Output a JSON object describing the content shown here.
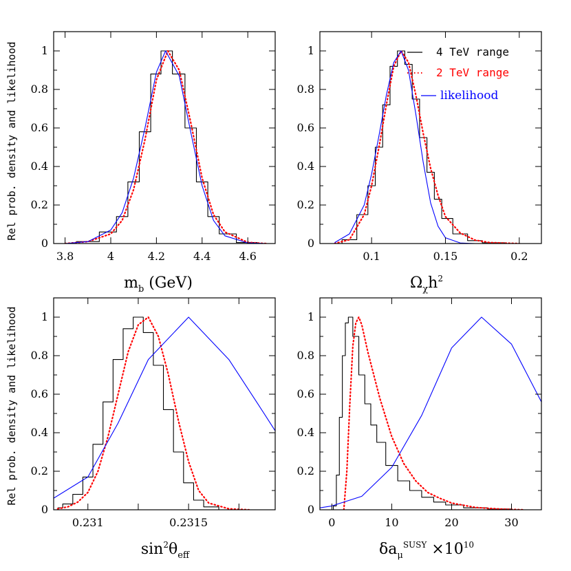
{
  "figure": {
    "ylabel": "Rel prob. density and likelihood"
  },
  "legend": {
    "items": [
      {
        "label": "4 TeV range",
        "color": "#000000",
        "style": "solid"
      },
      {
        "label": "2 TeV range",
        "color": "#ff0000",
        "style": "dotted"
      },
      {
        "label": "likelihood",
        "color": "#0000ff",
        "style": "solid"
      }
    ]
  },
  "chart_data": [
    {
      "type": "line",
      "xlabel_parts": [
        {
          "t": "m",
          "s": ""
        },
        {
          "t": "b",
          "s": "sub"
        },
        {
          "t": " (GeV)",
          "s": ""
        }
      ],
      "xlim": [
        3.75,
        4.72
      ],
      "ylim": [
        0,
        1.1
      ],
      "xticks": [
        3.8,
        4,
        4.2,
        4.4,
        4.6
      ],
      "xtick_labels": [
        "3.8",
        "4",
        "4.2",
        "4.4",
        "4.6"
      ],
      "yticks": [
        0,
        0.2,
        0.4,
        0.6,
        0.8,
        1
      ],
      "ytick_labels": [
        "0",
        "0.2",
        "0.4",
        "0.6",
        "0.8",
        "1"
      ],
      "series": [
        {
          "name": "4 TeV range",
          "color": "#000000",
          "style": "step",
          "x": [
            3.8,
            3.9,
            4.0,
            4.05,
            4.1,
            4.15,
            4.2,
            4.24,
            4.3,
            4.35,
            4.4,
            4.45,
            4.5,
            4.6,
            4.68
          ],
          "y": [
            0,
            0.01,
            0.06,
            0.14,
            0.32,
            0.58,
            0.88,
            1.0,
            0.88,
            0.6,
            0.32,
            0.14,
            0.05,
            0.005,
            0
          ]
        },
        {
          "name": "2 TeV range",
          "color": "#ff0000",
          "style": "dotted",
          "x": [
            3.8,
            3.9,
            4.0,
            4.05,
            4.1,
            4.15,
            4.2,
            4.25,
            4.3,
            4.35,
            4.4,
            4.45,
            4.5,
            4.6,
            4.68
          ],
          "y": [
            0,
            0.01,
            0.05,
            0.12,
            0.28,
            0.54,
            0.85,
            1.0,
            0.9,
            0.63,
            0.34,
            0.15,
            0.06,
            0.006,
            0
          ]
        },
        {
          "name": "likelihood",
          "color": "#0000ff",
          "style": "line",
          "x": [
            3.8,
            3.9,
            4.0,
            4.05,
            4.1,
            4.15,
            4.2,
            4.24,
            4.3,
            4.35,
            4.4,
            4.45,
            4.5,
            4.6,
            4.68
          ],
          "y": [
            0,
            0.01,
            0.07,
            0.16,
            0.34,
            0.6,
            0.89,
            1.0,
            0.87,
            0.58,
            0.3,
            0.12,
            0.04,
            0.003,
            0
          ]
        }
      ]
    },
    {
      "type": "line",
      "xlabel_parts": [
        {
          "t": "Ω",
          "s": ""
        },
        {
          "t": "χ",
          "s": "sub"
        },
        {
          "t": "h",
          "s": ""
        },
        {
          "t": "2",
          "s": "sup"
        }
      ],
      "xlim": [
        0.065,
        0.215
      ],
      "ylim": [
        0,
        1.1
      ],
      "xticks": [
        0.1,
        0.15,
        0.2
      ],
      "xtick_labels": [
        "0.1",
        "0.15",
        "0.2"
      ],
      "yticks": [
        0,
        0.2,
        0.4,
        0.6,
        0.8,
        1
      ],
      "ytick_labels": [
        "0",
        "0.2",
        "0.4",
        "0.6",
        "0.8",
        "1"
      ],
      "series": [
        {
          "name": "4 TeV range",
          "color": "#000000",
          "style": "step",
          "x": [
            0.075,
            0.085,
            0.095,
            0.1,
            0.105,
            0.11,
            0.115,
            0.12,
            0.125,
            0.13,
            0.135,
            0.14,
            0.145,
            0.15,
            0.16,
            0.17,
            0.18,
            0.2
          ],
          "y": [
            0,
            0.02,
            0.15,
            0.3,
            0.5,
            0.72,
            0.92,
            1.0,
            0.93,
            0.75,
            0.55,
            0.37,
            0.23,
            0.13,
            0.05,
            0.015,
            0.004,
            0
          ]
        },
        {
          "name": "2 TeV range",
          "color": "#ff0000",
          "style": "dotted",
          "x": [
            0.075,
            0.085,
            0.095,
            0.1,
            0.105,
            0.11,
            0.115,
            0.12,
            0.125,
            0.13,
            0.135,
            0.14,
            0.145,
            0.15,
            0.16,
            0.17,
            0.18,
            0.2
          ],
          "y": [
            0,
            0.02,
            0.15,
            0.3,
            0.5,
            0.72,
            0.92,
            1.0,
            0.94,
            0.77,
            0.57,
            0.39,
            0.25,
            0.14,
            0.055,
            0.018,
            0.005,
            0
          ]
        },
        {
          "name": "likelihood",
          "color": "#0000ff",
          "style": "line",
          "x": [
            0.075,
            0.085,
            0.095,
            0.1,
            0.105,
            0.11,
            0.115,
            0.12,
            0.125,
            0.13,
            0.135,
            0.14,
            0.145,
            0.15,
            0.16,
            0.17
          ],
          "y": [
            0.005,
            0.05,
            0.2,
            0.36,
            0.56,
            0.77,
            0.94,
            1.0,
            0.9,
            0.67,
            0.42,
            0.21,
            0.09,
            0.03,
            0.003,
            0
          ]
        }
      ]
    },
    {
      "type": "line",
      "xlabel_parts": [
        {
          "t": "sin",
          "s": ""
        },
        {
          "t": "2",
          "s": "sup"
        },
        {
          "t": "θ",
          "s": ""
        },
        {
          "t": "eff",
          "s": "sub"
        }
      ],
      "xlim": [
        0.23083,
        0.23193
      ],
      "ylim": [
        0,
        1.1
      ],
      "xticks": [
        0.231,
        0.23125,
        0.2315,
        0.23175
      ],
      "xtick_labels": [
        "0.231",
        "",
        "0.2315",
        ""
      ],
      "yticks": [
        0,
        0.2,
        0.4,
        0.6,
        0.8,
        1
      ],
      "ytick_labels": [
        "0",
        "0.2",
        "0.4",
        "0.6",
        "0.8",
        "1"
      ],
      "series": [
        {
          "name": "4 TeV range",
          "color": "#000000",
          "style": "step",
          "x": [
            0.23085,
            0.2309,
            0.23095,
            0.231,
            0.23105,
            0.2311,
            0.23115,
            0.2312,
            0.23125,
            0.2313,
            0.23135,
            0.2314,
            0.23145,
            0.2315,
            0.23155,
            0.2316,
            0.2317
          ],
          "y": [
            0.01,
            0.03,
            0.08,
            0.17,
            0.34,
            0.56,
            0.78,
            0.94,
            1.0,
            0.92,
            0.75,
            0.52,
            0.3,
            0.14,
            0.05,
            0.015,
            0
          ]
        },
        {
          "name": "2 TeV range",
          "color": "#ff0000",
          "style": "dotted",
          "x": [
            0.23085,
            0.2309,
            0.23095,
            0.231,
            0.23105,
            0.2311,
            0.23115,
            0.2312,
            0.23125,
            0.2313,
            0.23135,
            0.2314,
            0.23145,
            0.2315,
            0.23155,
            0.2316,
            0.2317,
            0.2318
          ],
          "y": [
            0.005,
            0.015,
            0.04,
            0.09,
            0.2,
            0.38,
            0.6,
            0.82,
            0.96,
            1.0,
            0.9,
            0.7,
            0.46,
            0.25,
            0.1,
            0.035,
            0.005,
            0
          ]
        },
        {
          "name": "likelihood",
          "color": "#0000ff",
          "style": "line",
          "x": [
            0.23083,
            0.231,
            0.23115,
            0.2313,
            0.2315,
            0.2317,
            0.23185,
            0.23193
          ],
          "y": [
            0.06,
            0.17,
            0.45,
            0.78,
            1.0,
            0.78,
            0.54,
            0.41
          ]
        }
      ]
    },
    {
      "type": "line",
      "xlabel_parts": [
        {
          "t": "δa",
          "s": ""
        },
        {
          "t": "μ",
          "s": "sub"
        },
        {
          "t": "SUSY",
          "s": "sup"
        },
        {
          "t": " ×10",
          "s": ""
        },
        {
          "t": "10",
          "s": "sup"
        }
      ],
      "xlim": [
        -2,
        35
      ],
      "ylim": [
        0,
        1.1
      ],
      "xticks": [
        0,
        10,
        20,
        30
      ],
      "xtick_labels": [
        "0",
        "10",
        "20",
        "30"
      ],
      "yticks": [
        0,
        0.2,
        0.4,
        0.6,
        0.8,
        1
      ],
      "ytick_labels": [
        "0",
        "0.2",
        "0.4",
        "0.6",
        "0.8",
        "1"
      ],
      "series": [
        {
          "name": "4 TeV range",
          "color": "#000000",
          "style": "step",
          "x": [
            0,
            0.5,
            1,
            1.5,
            2,
            2.5,
            3,
            4,
            5,
            6,
            7,
            8,
            10,
            12,
            14,
            16,
            18,
            20,
            24,
            28,
            32
          ],
          "y": [
            0,
            0.02,
            0.18,
            0.48,
            0.8,
            0.97,
            1.0,
            0.9,
            0.7,
            0.55,
            0.44,
            0.35,
            0.23,
            0.15,
            0.1,
            0.065,
            0.04,
            0.025,
            0.01,
            0.004,
            0
          ]
        },
        {
          "name": "2 TeV range",
          "color": "#ff0000",
          "style": "dotted",
          "x": [
            2,
            2.5,
            3,
            3.5,
            4,
            4.5,
            5,
            6,
            7,
            8,
            10,
            12,
            14,
            16,
            18,
            20,
            24,
            28,
            32
          ],
          "y": [
            0,
            0.2,
            0.55,
            0.85,
            0.97,
            1.0,
            0.96,
            0.82,
            0.7,
            0.58,
            0.38,
            0.24,
            0.15,
            0.09,
            0.06,
            0.035,
            0.012,
            0.004,
            0
          ]
        },
        {
          "name": "likelihood",
          "color": "#0000ff",
          "style": "line",
          "x": [
            -2,
            0,
            5,
            10,
            15,
            20,
            25,
            30,
            35
          ],
          "y": [
            0.01,
            0.02,
            0.07,
            0.22,
            0.49,
            0.84,
            1.0,
            0.86,
            0.56
          ]
        }
      ]
    }
  ]
}
